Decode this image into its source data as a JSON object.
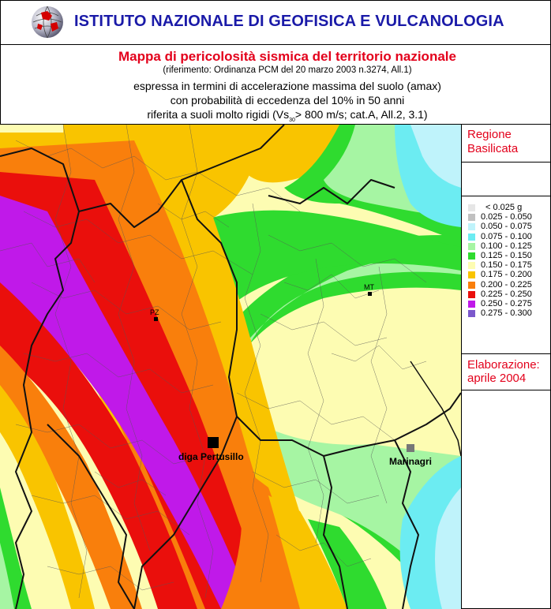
{
  "header": {
    "institute": "ISTITUTO NAZIONALE DI GEOFISICA E VULCANOLOGIA",
    "logo_icon": "globe-logo-icon"
  },
  "title": {
    "main": "Mappa di pericolosità sismica del territorio nazionale",
    "reference": "(riferimento: Ordinanza PCM del 20 marzo 2003 n.3274, All.1)",
    "line1": "espressa in termini di accelerazione massima del suolo (amax)",
    "line2": "con probabilità di eccedenza del 10% in 50 anni",
    "line3_pre": "riferita a suoli molto rigidi (Vs",
    "line3_sub": "30",
    "line3_post": "> 800 m/s; cat.A, All.2, 3.1)"
  },
  "region": {
    "line1": "Regione",
    "line2": "Basilicata"
  },
  "legend": [
    {
      "label": "< 0.025 g",
      "color": "#e6e6e6"
    },
    {
      "label": "0.025 - 0.050",
      "color": "#c0c0c0"
    },
    {
      "label": "0.050 - 0.075",
      "color": "#bff3fb"
    },
    {
      "label": "0.075 - 0.100",
      "color": "#6cecf2"
    },
    {
      "label": "0.100 - 0.125",
      "color": "#a6f5a3"
    },
    {
      "label": "0.125 - 0.150",
      "color": "#2fdb2f"
    },
    {
      "label": "0.150 - 0.175",
      "color": "#fdfcb2"
    },
    {
      "label": "0.175 - 0.200",
      "color": "#f9c400"
    },
    {
      "label": "0.200 - 0.225",
      "color": "#f97f0c"
    },
    {
      "label": "0.225 - 0.250",
      "color": "#ea0f0c"
    },
    {
      "label": "0.250 - 0.275",
      "color": "#c019e9"
    },
    {
      "label": "0.275 - 0.300",
      "color": "#7b58cc"
    }
  ],
  "elaboration": {
    "line1": "Elaborazione:",
    "line2": "aprile 2004"
  },
  "map": {
    "cities": {
      "potenza": "PZ",
      "matera": "MT"
    },
    "places": {
      "dam": "diga Pertusillo",
      "marinagri": "Marinagri"
    }
  }
}
